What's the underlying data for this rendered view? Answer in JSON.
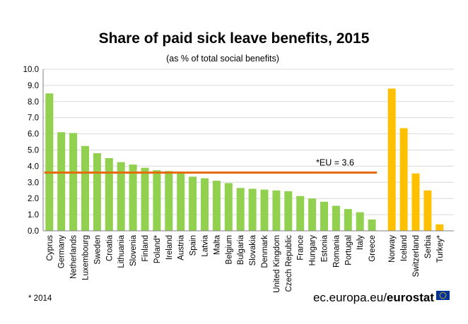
{
  "chart_data": {
    "type": "bar",
    "title": "Share of paid sick leave benefits, 2015",
    "subtitle": "(as % of total social benefits)",
    "ylim": [
      0,
      10
    ],
    "yticks": [
      "0.0",
      "1.0",
      "2.0",
      "3.0",
      "4.0",
      "5.0",
      "6.0",
      "7.0",
      "8.0",
      "9.0",
      "10.0"
    ],
    "grid": true,
    "categories": [
      "Cyprus",
      "Germany",
      "Netherlands",
      "Luxembourg",
      "Sweden",
      "Croatia",
      "Lithuania",
      "Slovenia",
      "Finland",
      "Poland*",
      "Ireland",
      "Austria",
      "Spain",
      "Latvia",
      "Malta",
      "Belgium",
      "Bulgaria",
      "Slovakia",
      "Denmark",
      "United Kingdom",
      "Czech Republic",
      "France",
      "Hungary",
      "Estonia",
      "Romania",
      "Portugal",
      "Italy",
      "Greece",
      "Norway",
      "Iceland",
      "Switzerland",
      "Serbia",
      "Turkey*"
    ],
    "values": [
      8.5,
      6.1,
      6.05,
      5.25,
      4.8,
      4.5,
      4.25,
      4.1,
      3.9,
      3.75,
      3.7,
      3.6,
      3.35,
      3.25,
      3.1,
      2.95,
      2.65,
      2.6,
      2.55,
      2.5,
      2.45,
      2.15,
      2.0,
      1.8,
      1.55,
      1.35,
      1.15,
      0.7,
      8.8,
      6.35,
      3.55,
      2.5,
      0.4
    ],
    "groups": [
      {
        "color": "#92D050",
        "count": 28
      },
      {
        "color": "#FFC000",
        "count": 5
      }
    ],
    "reference_line": {
      "value": 3.6,
      "label": "*EU = 3.6",
      "color": "#E46C0A"
    }
  },
  "footnote": "* 2014",
  "brand": {
    "site": "ec.europa.eu/",
    "name": "eurostat"
  },
  "colors": {
    "eu_bar": "#92D050",
    "non_eu_bar": "#FFC000",
    "eu_line": "#E46C0A",
    "grid": "#D9D9D9",
    "flag_blue": "#003399",
    "flag_star": "#FFCC00"
  },
  "icons": {
    "eu_flag": "eu-flag-icon"
  }
}
